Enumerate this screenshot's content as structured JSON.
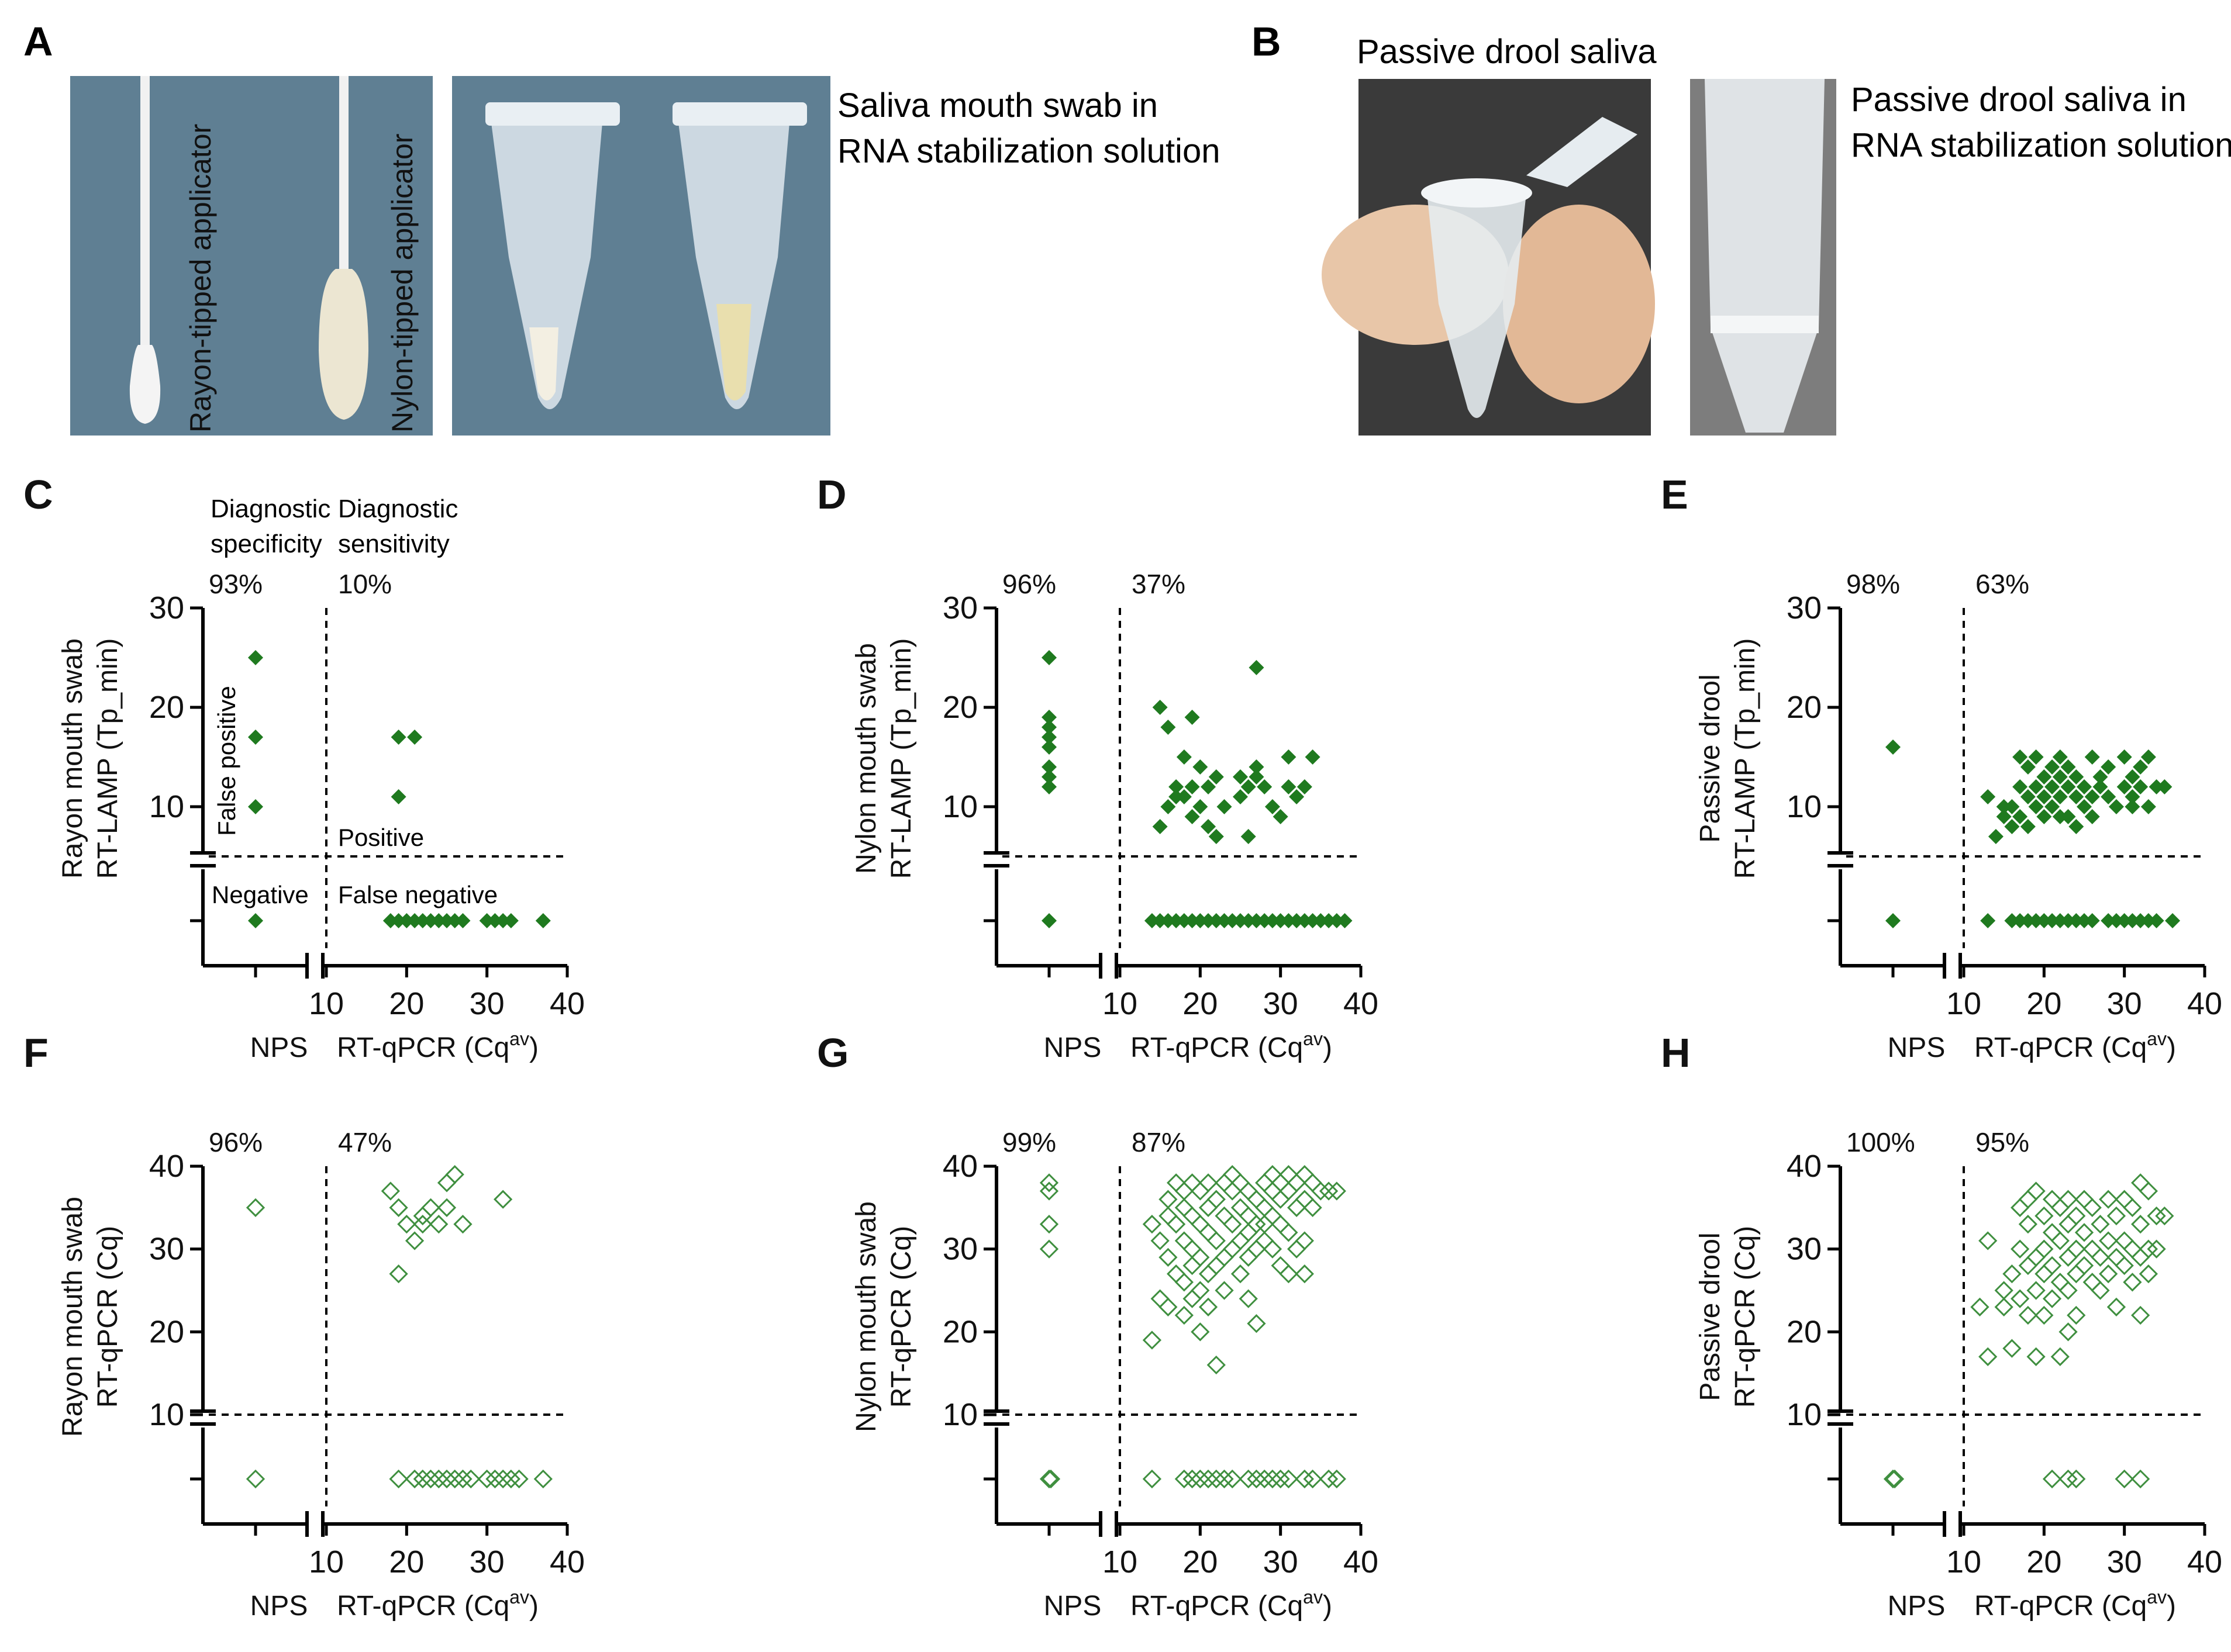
{
  "colors": {
    "filled_marker": "#1f7a1f",
    "open_marker": "#3f8f3f",
    "axis": "#000000",
    "photo_blue": "#5f7f93",
    "photo_dark": "#3a3a3a"
  },
  "panel_a": {
    "letter": "A",
    "swab_label_1": "Rayon-tipped applicator",
    "swab_label_2": "Nylon-tipped applicator",
    "caption_line1": "Saliva mouth swab in",
    "caption_line2": "RNA stabilization solution"
  },
  "panel_b": {
    "letter": "B",
    "title": "Passive drool saliva",
    "caption_line1": "Passive drool saliva in",
    "caption_line2": "RNA stabilization solution"
  },
  "annotations": {
    "diag_spec_1": "Diagnostic",
    "diag_spec_2": "specificity",
    "diag_sens_1": "Diagnostic",
    "diag_sens_2": "sensitivity",
    "false_positive": "False positive",
    "positive": "Positive",
    "negative": "Negative",
    "false_negative": "False negative"
  },
  "chart_data": [
    {
      "id": "C",
      "letter": "C",
      "type": "scatter",
      "marker": "filled",
      "ylabel1": "Rayon mouth swab",
      "ylabel2": "RT-LAMP (Tp_min)",
      "xlabel_left": "NPS",
      "xlabel_right": "RT-qPCR (Cq",
      "xlabel_sup": "av",
      "xlabel_end": ")",
      "yticks": [
        10,
        20,
        30
      ],
      "ylim": [
        5,
        30
      ],
      "xticks": [
        10,
        20,
        30,
        40
      ],
      "xlim": [
        10,
        40
      ],
      "cutoff_y": 5,
      "specificity": "93%",
      "sensitivity": "10%",
      "neg_positive": [
        25,
        17,
        10
      ],
      "neg_negative_count": 1,
      "pos_positive": [
        [
          19,
          17
        ],
        [
          21,
          17
        ],
        [
          19,
          11
        ]
      ],
      "pos_negative_x": [
        18,
        19,
        20,
        21,
        22,
        23,
        24,
        25,
        26,
        27,
        30,
        31,
        32,
        33,
        37
      ]
    },
    {
      "id": "D",
      "letter": "D",
      "type": "scatter",
      "marker": "filled",
      "ylabel1": "Nylon mouth swab",
      "ylabel2": "RT-LAMP (Tp_min)",
      "xlabel_left": "NPS",
      "xlabel_right": "RT-qPCR (Cq",
      "xlabel_sup": "av",
      "xlabel_end": ")",
      "yticks": [
        10,
        20,
        30
      ],
      "ylim": [
        5,
        30
      ],
      "xticks": [
        10,
        20,
        30,
        40
      ],
      "xlim": [
        10,
        40
      ],
      "cutoff_y": 5,
      "specificity": "96%",
      "sensitivity": "37%",
      "neg_positive": [
        25,
        19,
        18,
        17,
        16,
        14,
        13,
        12
      ],
      "neg_negative_count": 1,
      "pos_positive": [
        [
          15,
          20
        ],
        [
          16,
          18
        ],
        [
          19,
          19
        ],
        [
          18,
          15
        ],
        [
          20,
          14
        ],
        [
          22,
          13
        ],
        [
          17,
          12
        ],
        [
          19,
          12
        ],
        [
          21,
          12
        ],
        [
          18,
          11
        ],
        [
          20,
          10
        ],
        [
          16,
          10
        ],
        [
          15,
          8
        ],
        [
          19,
          9
        ],
        [
          21,
          8
        ],
        [
          22,
          7
        ],
        [
          17,
          11
        ],
        [
          23,
          10
        ],
        [
          25,
          13
        ],
        [
          26,
          12
        ],
        [
          27,
          24
        ],
        [
          27,
          13
        ],
        [
          28,
          12
        ],
        [
          29,
          10
        ],
        [
          25,
          11
        ],
        [
          26,
          7
        ],
        [
          31,
          12
        ],
        [
          32,
          11
        ],
        [
          33,
          12
        ],
        [
          31,
          15
        ],
        [
          34,
          15
        ],
        [
          30,
          9
        ],
        [
          27,
          14
        ]
      ],
      "pos_negative_x": [
        14,
        15,
        16,
        17,
        18,
        19,
        20,
        21,
        22,
        23,
        24,
        25,
        26,
        27,
        28,
        29,
        30,
        31,
        32,
        33,
        34,
        35,
        36,
        37,
        38
      ]
    },
    {
      "id": "E",
      "letter": "E",
      "type": "scatter",
      "marker": "filled",
      "ylabel1": "Passive drool",
      "ylabel2": "RT-LAMP (Tp_min)",
      "xlabel_left": "NPS",
      "xlabel_right": "RT-qPCR (Cq",
      "xlabel_sup": "av",
      "xlabel_end": ")",
      "yticks": [
        10,
        20,
        30
      ],
      "ylim": [
        5,
        30
      ],
      "xticks": [
        10,
        20,
        30,
        40
      ],
      "xlim": [
        10,
        40
      ],
      "cutoff_y": 5,
      "specificity": "98%",
      "sensitivity": "63%",
      "neg_positive": [
        16
      ],
      "neg_negative_count": 1,
      "pos_positive": [
        [
          13,
          11
        ],
        [
          14,
          7
        ],
        [
          15,
          9
        ],
        [
          16,
          10
        ],
        [
          16,
          8
        ],
        [
          17,
          12
        ],
        [
          17,
          9
        ],
        [
          18,
          14
        ],
        [
          18,
          11
        ],
        [
          19,
          15
        ],
        [
          19,
          12
        ],
        [
          19,
          10
        ],
        [
          20,
          13
        ],
        [
          20,
          11
        ],
        [
          20,
          9
        ],
        [
          21,
          14
        ],
        [
          21,
          12
        ],
        [
          21,
          10
        ],
        [
          22,
          15
        ],
        [
          22,
          11
        ],
        [
          22,
          13
        ],
        [
          23,
          12
        ],
        [
          23,
          9
        ],
        [
          23,
          14
        ],
        [
          24,
          11
        ],
        [
          24,
          8
        ],
        [
          24,
          13
        ],
        [
          25,
          12
        ],
        [
          25,
          10
        ],
        [
          26,
          15
        ],
        [
          26,
          11
        ],
        [
          26,
          9
        ],
        [
          27,
          13
        ],
        [
          27,
          12
        ],
        [
          28,
          11
        ],
        [
          28,
          14
        ],
        [
          29,
          10
        ],
        [
          30,
          12
        ],
        [
          30,
          15
        ],
        [
          31,
          13
        ],
        [
          31,
          11
        ],
        [
          32,
          14
        ],
        [
          32,
          12
        ],
        [
          33,
          15
        ],
        [
          33,
          10
        ],
        [
          34,
          12
        ],
        [
          35,
          12
        ],
        [
          31,
          10
        ],
        [
          17,
          15
        ],
        [
          18,
          8
        ],
        [
          15,
          10
        ],
        [
          22,
          9
        ]
      ],
      "pos_negative_x": [
        13,
        16,
        17,
        18,
        19,
        20,
        21,
        22,
        23,
        24,
        25,
        26,
        28,
        29,
        30,
        31,
        32,
        33,
        34,
        36
      ]
    },
    {
      "id": "F",
      "letter": "F",
      "type": "scatter",
      "marker": "open",
      "ylabel1": "Rayon mouth swab",
      "ylabel2": "RT-qPCR (Cq)",
      "xlabel_left": "NPS",
      "xlabel_right": "RT-qPCR (Cq",
      "xlabel_sup": "av",
      "xlabel_end": ")",
      "yticks": [
        10,
        20,
        30,
        40
      ],
      "ylim": [
        10,
        40
      ],
      "xticks": [
        10,
        20,
        30,
        40
      ],
      "xlim": [
        10,
        40
      ],
      "cutoff_y": 10,
      "specificity": "96%",
      "sensitivity": "47%",
      "neg_positive": [
        35
      ],
      "neg_negative_count": 1,
      "pos_positive": [
        [
          18,
          37
        ],
        [
          19,
          35
        ],
        [
          19,
          27
        ],
        [
          20,
          33
        ],
        [
          21,
          31
        ],
        [
          22,
          34
        ],
        [
          23,
          35
        ],
        [
          24,
          33
        ],
        [
          25,
          38
        ],
        [
          26,
          39
        ],
        [
          25,
          35
        ],
        [
          27,
          33
        ],
        [
          32,
          36
        ],
        [
          22,
          33
        ]
      ],
      "pos_negative_x": [
        19,
        21,
        22,
        23,
        24,
        25,
        26,
        27,
        28,
        30,
        31,
        32,
        33,
        34,
        37
      ]
    },
    {
      "id": "G",
      "letter": "G",
      "type": "scatter",
      "marker": "open",
      "ylabel1": "Nylon mouth swab",
      "ylabel2": "RT-qPCR (Cq)",
      "xlabel_left": "NPS",
      "xlabel_right": "RT-qPCR (Cq",
      "xlabel_sup": "av",
      "xlabel_end": ")",
      "yticks": [
        10,
        20,
        30,
        40
      ],
      "ylim": [
        10,
        40
      ],
      "xticks": [
        10,
        20,
        30,
        40
      ],
      "xlim": [
        10,
        40
      ],
      "cutoff_y": 10,
      "specificity": "99%",
      "sensitivity": "87%",
      "neg_positive": [
        38,
        37,
        33,
        30
      ],
      "neg_negative_count": 2,
      "pos_positive": [
        [
          14,
          33
        ],
        [
          14,
          19
        ],
        [
          15,
          31
        ],
        [
          15,
          24
        ],
        [
          16,
          36
        ],
        [
          16,
          29
        ],
        [
          16,
          23
        ],
        [
          17,
          38
        ],
        [
          17,
          33
        ],
        [
          17,
          27
        ],
        [
          18,
          37
        ],
        [
          18,
          35
        ],
        [
          18,
          31
        ],
        [
          18,
          26
        ],
        [
          18,
          22
        ],
        [
          19,
          38
        ],
        [
          19,
          34
        ],
        [
          19,
          30
        ],
        [
          19,
          28
        ],
        [
          19,
          24
        ],
        [
          20,
          37
        ],
        [
          20,
          33
        ],
        [
          20,
          29
        ],
        [
          20,
          25
        ],
        [
          21,
          38
        ],
        [
          21,
          35
        ],
        [
          21,
          32
        ],
        [
          21,
          27
        ],
        [
          21,
          23
        ],
        [
          22,
          36
        ],
        [
          22,
          31
        ],
        [
          22,
          16
        ],
        [
          23,
          38
        ],
        [
          23,
          34
        ],
        [
          23,
          29
        ],
        [
          23,
          25
        ],
        [
          24,
          39
        ],
        [
          24,
          37
        ],
        [
          24,
          33
        ],
        [
          24,
          30
        ],
        [
          25,
          38
        ],
        [
          25,
          35
        ],
        [
          25,
          31
        ],
        [
          25,
          27
        ],
        [
          26,
          37
        ],
        [
          26,
          34
        ],
        [
          26,
          32
        ],
        [
          26,
          24
        ],
        [
          27,
          36
        ],
        [
          27,
          33
        ],
        [
          27,
          30
        ],
        [
          27,
          21
        ],
        [
          28,
          38
        ],
        [
          28,
          35
        ],
        [
          28,
          31
        ],
        [
          29,
          39
        ],
        [
          29,
          37
        ],
        [
          29,
          34
        ],
        [
          29,
          30
        ],
        [
          30,
          38
        ],
        [
          30,
          36
        ],
        [
          30,
          33
        ],
        [
          30,
          28
        ],
        [
          31,
          39
        ],
        [
          31,
          37
        ],
        [
          31,
          32
        ],
        [
          31,
          27
        ],
        [
          32,
          38
        ],
        [
          32,
          35
        ],
        [
          32,
          30
        ],
        [
          33,
          39
        ],
        [
          33,
          36
        ],
        [
          33,
          31
        ],
        [
          33,
          27
        ],
        [
          34,
          38
        ],
        [
          34,
          35
        ],
        [
          35,
          37
        ],
        [
          36,
          37
        ],
        [
          37,
          37
        ],
        [
          16,
          34
        ],
        [
          20,
          20
        ],
        [
          22,
          28
        ],
        [
          26,
          29
        ],
        [
          28,
          33
        ]
      ],
      "pos_negative_x": [
        14,
        18,
        19,
        20,
        21,
        22,
        23,
        24,
        26,
        27,
        28,
        29,
        30,
        31,
        33,
        34,
        36,
        37
      ]
    },
    {
      "id": "H",
      "letter": "H",
      "type": "scatter",
      "marker": "open",
      "ylabel1": "Passive drool",
      "ylabel2": "RT-qPCR (Cq)",
      "xlabel_left": "NPS",
      "xlabel_right": "RT-qPCR (Cq",
      "xlabel_sup": "av",
      "xlabel_end": ")",
      "yticks": [
        10,
        20,
        30,
        40
      ],
      "ylim": [
        10,
        40
      ],
      "xticks": [
        10,
        20,
        30,
        40
      ],
      "xlim": [
        10,
        40
      ],
      "cutoff_y": 10,
      "specificity": "100%",
      "sensitivity": "95%",
      "neg_positive": [],
      "neg_negative_count": 2,
      "pos_positive": [
        [
          12,
          23
        ],
        [
          13,
          31
        ],
        [
          13,
          17
        ],
        [
          15,
          25
        ],
        [
          15,
          23
        ],
        [
          16,
          27
        ],
        [
          16,
          18
        ],
        [
          17,
          35
        ],
        [
          17,
          30
        ],
        [
          17,
          24
        ],
        [
          18,
          36
        ],
        [
          18,
          33
        ],
        [
          18,
          28
        ],
        [
          18,
          22
        ],
        [
          19,
          37
        ],
        [
          19,
          29
        ],
        [
          19,
          25
        ],
        [
          19,
          17
        ],
        [
          20,
          34
        ],
        [
          20,
          30
        ],
        [
          20,
          27
        ],
        [
          20,
          22
        ],
        [
          21,
          36
        ],
        [
          21,
          32
        ],
        [
          21,
          28
        ],
        [
          21,
          24
        ],
        [
          22,
          35
        ],
        [
          22,
          31
        ],
        [
          22,
          26
        ],
        [
          22,
          17
        ],
        [
          23,
          36
        ],
        [
          23,
          33
        ],
        [
          23,
          29
        ],
        [
          23,
          25
        ],
        [
          23,
          20
        ],
        [
          24,
          34
        ],
        [
          24,
          30
        ],
        [
          24,
          27
        ],
        [
          24,
          22
        ],
        [
          25,
          36
        ],
        [
          25,
          32
        ],
        [
          25,
          28
        ],
        [
          26,
          35
        ],
        [
          26,
          30
        ],
        [
          26,
          26
        ],
        [
          27,
          33
        ],
        [
          27,
          29
        ],
        [
          27,
          25
        ],
        [
          28,
          36
        ],
        [
          28,
          31
        ],
        [
          28,
          27
        ],
        [
          29,
          34
        ],
        [
          29,
          29
        ],
        [
          29,
          23
        ],
        [
          30,
          36
        ],
        [
          30,
          31
        ],
        [
          30,
          28
        ],
        [
          31,
          35
        ],
        [
          31,
          30
        ],
        [
          31,
          26
        ],
        [
          32,
          38
        ],
        [
          32,
          33
        ],
        [
          32,
          29
        ],
        [
          32,
          22
        ],
        [
          33,
          37
        ],
        [
          33,
          30
        ],
        [
          33,
          27
        ],
        [
          34,
          34
        ],
        [
          34,
          30
        ],
        [
          35,
          34
        ]
      ],
      "pos_negative_x": [
        21,
        23,
        24,
        30,
        32
      ]
    }
  ]
}
